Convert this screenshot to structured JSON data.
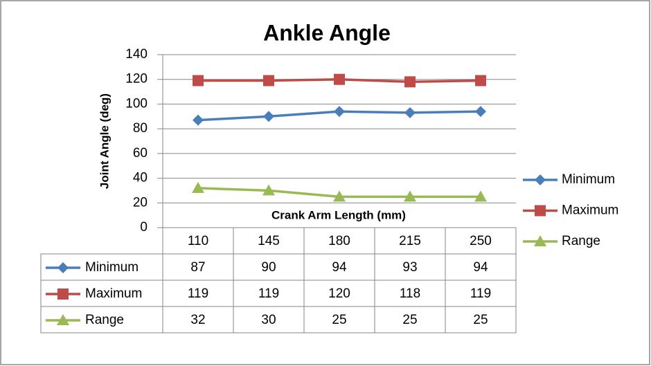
{
  "chart_data": {
    "type": "line",
    "title": "Ankle Angle",
    "x_label": "Crank Arm Length (mm)",
    "y_label": "Joint Angle (deg)",
    "categories": [
      "110",
      "145",
      "180",
      "215",
      "250"
    ],
    "series": [
      {
        "name": "Minimum",
        "color": "#4a7ebb",
        "marker": "diamond",
        "values": [
          87,
          90,
          94,
          93,
          94
        ]
      },
      {
        "name": "Maximum",
        "color": "#be4b48",
        "marker": "square",
        "values": [
          119,
          119,
          120,
          118,
          119
        ]
      },
      {
        "name": "Range",
        "color": "#98b954",
        "marker": "triangle",
        "values": [
          32,
          30,
          25,
          25,
          25
        ]
      }
    ],
    "ylim": [
      0,
      140
    ],
    "yticks": [
      0,
      20,
      40,
      60,
      80,
      100,
      120,
      140
    ],
    "grid": true,
    "legend": "right",
    "data_table": true
  }
}
